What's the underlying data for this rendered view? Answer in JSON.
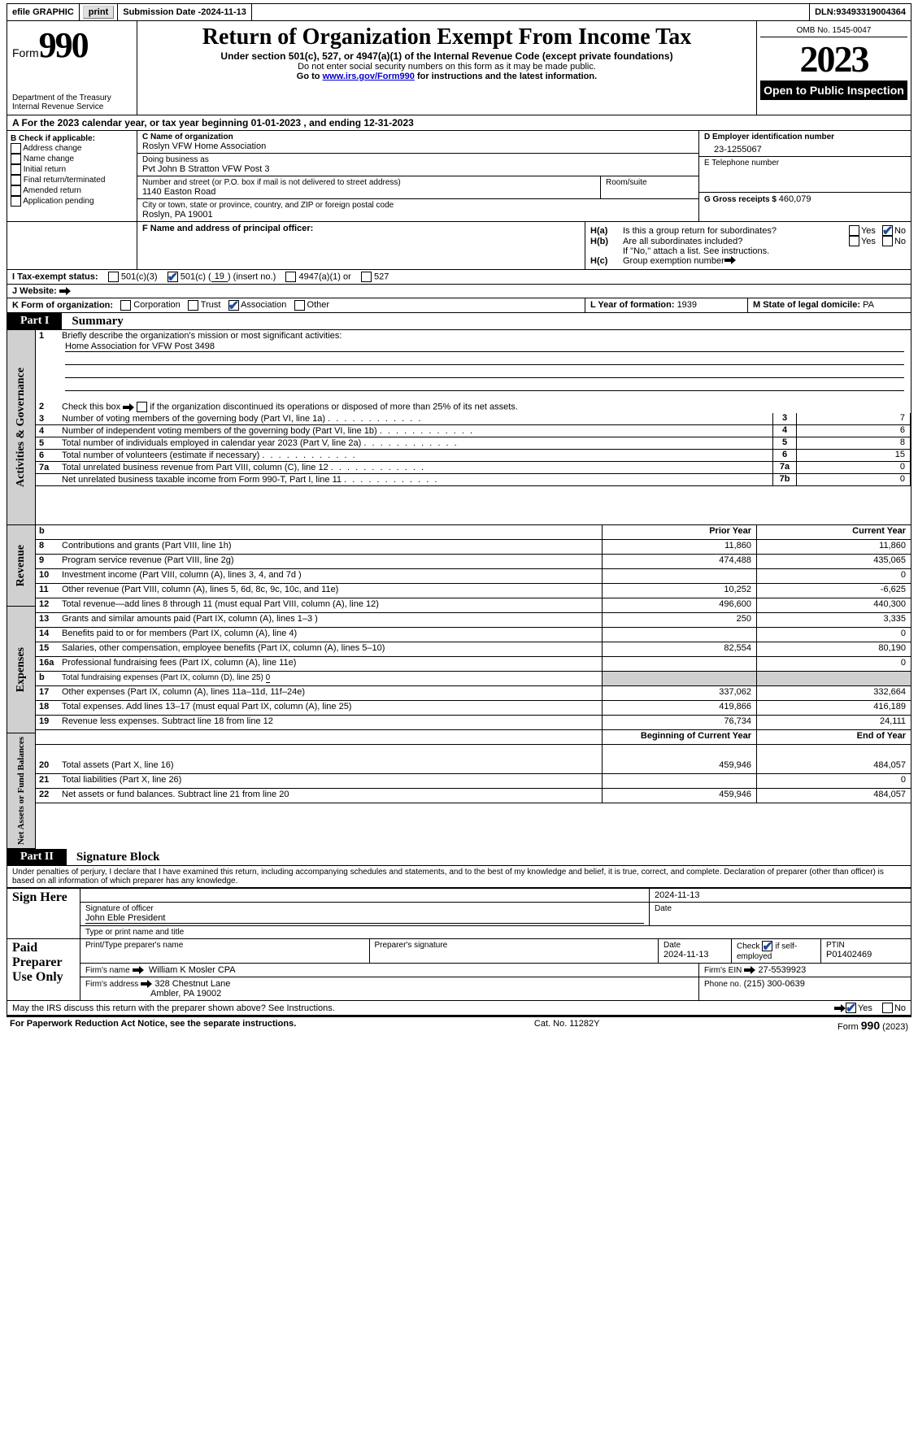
{
  "topbar": {
    "efile": "efile GRAPHIC",
    "print": "print",
    "subdate_label": "Submission Date - ",
    "subdate": "2024-11-13",
    "dln_label": "DLN: ",
    "dln": "93493319004364"
  },
  "header": {
    "form_prefix": "Form",
    "form_number": "990",
    "dept1": "Department of the Treasury",
    "dept2": "Internal Revenue Service",
    "title": "Return of Organization Exempt From Income Tax",
    "subtitle": "Under section 501(c), 527, or 4947(a)(1) of the Internal Revenue Code (except private foundations)",
    "note1": "Do not enter social security numbers on this form as it may be made public.",
    "note2_pre": "Go to ",
    "note2_link": "www.irs.gov/Form990",
    "note2_post": " for instructions and the latest information.",
    "omb": "OMB No. 1545-0047",
    "year": "2023",
    "open_pub": "Open to Public Inspection"
  },
  "lineA": {
    "pre": "A For the 2023 calendar year, or tax year beginning ",
    "begin": "01-01-2023",
    "mid": "   , and ending ",
    "end": "12-31-2023"
  },
  "boxB": {
    "label": "B Check if applicable:",
    "items": [
      "Address change",
      "Name change",
      "Initial return",
      "Final return/terminated",
      "Amended return",
      "Application pending"
    ]
  },
  "boxC": {
    "label": "C Name of organization",
    "name": "Roslyn VFW Home Association",
    "dba_label": "Doing business as",
    "dba": "Pvt John B Stratton VFW Post 3",
    "street_label": "Number and street (or P.O. box if mail is not delivered to street address)",
    "street": "1140 Easton Road",
    "room_label": "Room/suite",
    "city_label": "City or town, state or province, country, and ZIP or foreign postal code",
    "city": "Roslyn, PA   19001"
  },
  "boxD": {
    "label": "D Employer identification number",
    "value": "23-1255067"
  },
  "boxE": {
    "label": "E Telephone number"
  },
  "boxG": {
    "label": "G Gross receipts $ ",
    "value": "460,079"
  },
  "boxF": {
    "label": "F  Name and address of principal officer:"
  },
  "boxH": {
    "ha_label": "H(a)",
    "ha_text": "Is this a group return for subordinates?",
    "hb_label": "H(b)",
    "hb_text": "Are all subordinates included?",
    "hb_note": "If \"No,\" attach a list. See instructions.",
    "hc_label": "H(c)",
    "hc_text": "Group exemption number",
    "yes": "Yes",
    "no": "No"
  },
  "boxI": {
    "label": "I   Tax-exempt status:",
    "opt1": "501(c)(3)",
    "opt2_pre": "501(c) (",
    "opt2_num": "19",
    "opt2_post": ") (insert no.)",
    "opt3": "4947(a)(1) or",
    "opt4": "527"
  },
  "boxJ": {
    "label": "J   Website:"
  },
  "boxK": {
    "label": "K Form of organization:",
    "opts": [
      "Corporation",
      "Trust",
      "Association",
      "Other"
    ],
    "checked_index": 2
  },
  "boxL": {
    "label": "L Year of formation: ",
    "value": "1939"
  },
  "boxM": {
    "label": "M State of legal domicile: ",
    "value": "PA"
  },
  "part1": {
    "label": "Part I",
    "title": "Summary",
    "side_ag": "Activities & Governance",
    "side_rev": "Revenue",
    "side_exp": "Expenses",
    "side_net": "Net Assets or Fund Balances",
    "line1_label": "1",
    "line1_text": "Briefly describe the organization's mission or most significant activities:",
    "line1_val": "Home Association for VFW Post 3498",
    "line2_label": "2",
    "line2_text": "Check this box ",
    "line2_text2": " if the organization discontinued its operations or disposed of more than 25% of its net assets.",
    "ag_rows": [
      {
        "n": "3",
        "t": "Number of voting members of the governing body (Part VI, line 1a)",
        "box": "3",
        "v": "7"
      },
      {
        "n": "4",
        "t": "Number of independent voting members of the governing body (Part VI, line 1b)",
        "box": "4",
        "v": "6"
      },
      {
        "n": "5",
        "t": "Total number of individuals employed in calendar year 2023 (Part V, line 2a)",
        "box": "5",
        "v": "8"
      },
      {
        "n": "6",
        "t": "Total number of volunteers (estimate if necessary)",
        "box": "6",
        "v": "15"
      },
      {
        "n": "7a",
        "t": "Total unrelated business revenue from Part VIII, column (C), line 12",
        "box": "7a",
        "v": "0"
      },
      {
        "n": "",
        "t": "Net unrelated business taxable income from Form 990-T, Part I, line 11",
        "box": "7b",
        "v": "0"
      }
    ],
    "b_label": "b",
    "prior_year": "Prior Year",
    "current_year": "Current Year",
    "rev_rows": [
      {
        "n": "8",
        "t": "Contributions and grants (Part VIII, line 1h)",
        "py": "11,860",
        "cy": "11,860"
      },
      {
        "n": "9",
        "t": "Program service revenue (Part VIII, line 2g)",
        "py": "474,488",
        "cy": "435,065"
      },
      {
        "n": "10",
        "t": "Investment income (Part VIII, column (A), lines 3, 4, and 7d )",
        "py": "",
        "cy": "0"
      },
      {
        "n": "11",
        "t": "Other revenue (Part VIII, column (A), lines 5, 6d, 8c, 9c, 10c, and 11e)",
        "py": "10,252",
        "cy": "-6,625"
      },
      {
        "n": "12",
        "t": "Total revenue—add lines 8 through 11 (must equal Part VIII, column (A), line 12)",
        "py": "496,600",
        "cy": "440,300"
      }
    ],
    "exp_rows": [
      {
        "n": "13",
        "t": "Grants and similar amounts paid (Part IX, column (A), lines 1–3 )",
        "py": "250",
        "cy": "3,335"
      },
      {
        "n": "14",
        "t": "Benefits paid to or for members (Part IX, column (A), line 4)",
        "py": "",
        "cy": "0"
      },
      {
        "n": "15",
        "t": "Salaries, other compensation, employee benefits (Part IX, column (A), lines 5–10)",
        "py": "82,554",
        "cy": "80,190"
      },
      {
        "n": "16a",
        "t": "Professional fundraising fees (Part IX, column (A), line 11e)",
        "py": "",
        "cy": "0"
      },
      {
        "n": "b",
        "t": "Total fundraising expenses (Part IX, column (D), line 25) ",
        "ul": "0",
        "shade": true
      },
      {
        "n": "17",
        "t": "Other expenses (Part IX, column (A), lines 11a–11d, 11f–24e)",
        "py": "337,062",
        "cy": "332,664"
      },
      {
        "n": "18",
        "t": "Total expenses. Add lines 13–17 (must equal Part IX, column (A), line 25)",
        "py": "419,866",
        "cy": "416,189"
      },
      {
        "n": "19",
        "t": "Revenue less expenses. Subtract line 18 from line 12",
        "py": "76,734",
        "cy": "24,111"
      }
    ],
    "beg_year": "Beginning of Current Year",
    "end_year": "End of Year",
    "net_rows": [
      {
        "n": "20",
        "t": "Total assets (Part X, line 16)",
        "py": "459,946",
        "cy": "484,057"
      },
      {
        "n": "21",
        "t": "Total liabilities (Part X, line 26)",
        "py": "",
        "cy": "0"
      },
      {
        "n": "22",
        "t": "Net assets or fund balances. Subtract line 21 from line 20",
        "py": "459,946",
        "cy": "484,057"
      }
    ]
  },
  "part2": {
    "label": "Part II",
    "title": "Signature Block",
    "declaration": "Under penalties of perjury, I declare that I have examined this return, including accompanying schedules and statements, and to the best of my knowledge and belief, it is true, correct, and complete. Declaration of preparer (other than officer) is based on all information of which preparer has any knowledge.",
    "sign_here": "Sign Here",
    "sig_officer": "Signature of officer",
    "sig_date": "2024-11-13",
    "sig_name": "John Eble President",
    "sig_type": "Type or print name and title",
    "date_lbl": "Date",
    "paid_prep": "Paid Preparer Use Only",
    "prep_name_lbl": "Print/Type preparer's name",
    "prep_sig_lbl": "Preparer's signature",
    "prep_date_lbl": "Date",
    "prep_date": "2024-11-13",
    "prep_check_lbl": "Check",
    "prep_check_suffix": "if self-employed",
    "ptin_lbl": "PTIN",
    "ptin": "P01402469",
    "firm_name_lbl": "Firm's name",
    "firm_name": "William K Mosler CPA",
    "firm_ein_lbl": "Firm's EIN",
    "firm_ein": "27-5539923",
    "firm_addr_lbl": "Firm's address",
    "firm_addr1": "328 Chestnut Lane",
    "firm_addr2": "Ambler, PA   19002",
    "phone_lbl": "Phone no.",
    "phone": "(215) 300-0639",
    "discuss": "May the IRS discuss this return with the preparer shown above? See Instructions.",
    "yes": "Yes",
    "no": "No"
  },
  "footer": {
    "pra": "For Paperwork Reduction Act Notice, see the separate instructions.",
    "cat": "Cat. No. 11282Y",
    "form": "Form 990 (2023)"
  },
  "colors": {
    "link": "#0000cc",
    "check": "#1a4aa0",
    "shade": "#d0d0d0"
  }
}
